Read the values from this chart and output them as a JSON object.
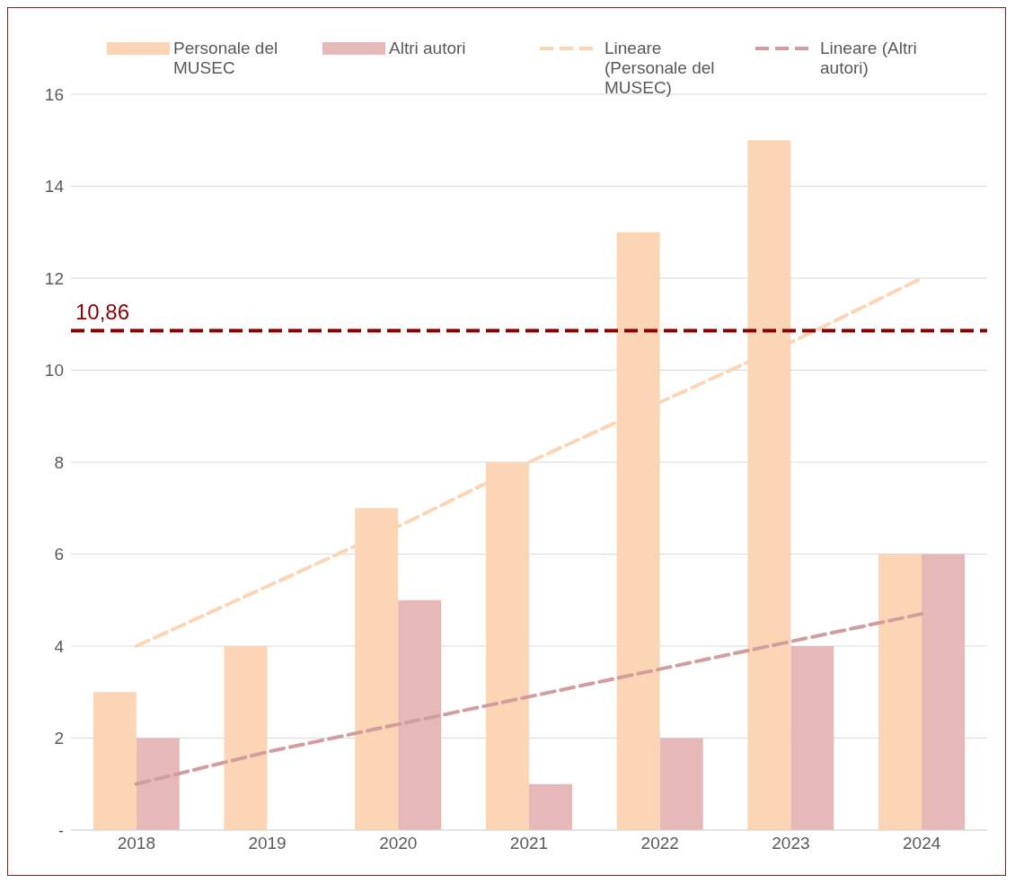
{
  "chart_data": {
    "type": "bar",
    "categories": [
      "2018",
      "2019",
      "2020",
      "2021",
      "2022",
      "2023",
      "2024"
    ],
    "series": [
      {
        "name": "Personale del MUSEC",
        "color": "#fcd5b4",
        "values": [
          3,
          4,
          7,
          8,
          13,
          15,
          6
        ]
      },
      {
        "name": "Altri autori",
        "color": "#e6b9b8",
        "values": [
          2,
          0,
          5,
          1,
          2,
          4,
          6
        ]
      },
      {
        "name": "Lineare (Personale del MUSEC)",
        "type": "line",
        "line_style": "dashed",
        "color": "#fcd5b4",
        "values": [
          4.0,
          5.3,
          6.6,
          8.0,
          9.3,
          10.6,
          12.0
        ]
      },
      {
        "name": "Lineare (Altri autori)",
        "type": "line",
        "line_style": "dashed",
        "color": "#d29d9c",
        "values": [
          1.0,
          1.7,
          2.3,
          2.9,
          3.5,
          4.1,
          4.7
        ]
      }
    ],
    "ylim": [
      0,
      16
    ],
    "yticks": [
      {
        "value": 0,
        "label": "-"
      },
      2,
      4,
      6,
      8,
      10,
      12,
      14,
      16
    ],
    "ref_lines": [
      {
        "axis": "y",
        "value": 10.86,
        "label": "10,86",
        "color": "#8b0000",
        "line_style": "dashed"
      }
    ],
    "grid": "y",
    "legend": "top"
  }
}
